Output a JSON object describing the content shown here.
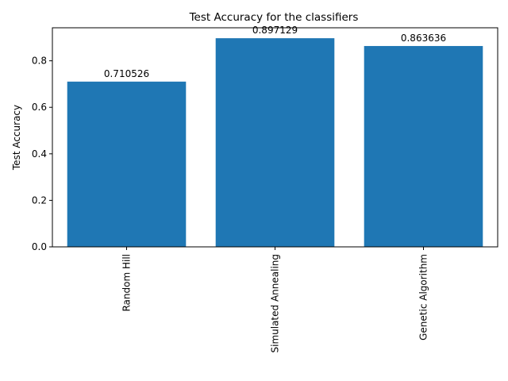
{
  "chart_data": {
    "type": "bar",
    "title": "Test Accuracy for the classifiers",
    "xlabel": "",
    "ylabel": "Test Accuracy",
    "categories": [
      "Random Hill",
      "Simulated Annealing",
      "Genetic Algorithm"
    ],
    "values": [
      0.710526,
      0.897129,
      0.863636
    ],
    "value_labels": [
      "0.710526",
      "0.897129",
      "0.863636"
    ],
    "yticks": [
      0.0,
      0.2,
      0.4,
      0.6,
      0.8
    ],
    "ytick_labels": [
      "0.0",
      "0.2",
      "0.4",
      "0.6",
      "0.8"
    ],
    "ylim": [
      0,
      0.942
    ],
    "grid": false,
    "bar_color": "#1f77b4",
    "xtick_rotation": "vertical"
  }
}
